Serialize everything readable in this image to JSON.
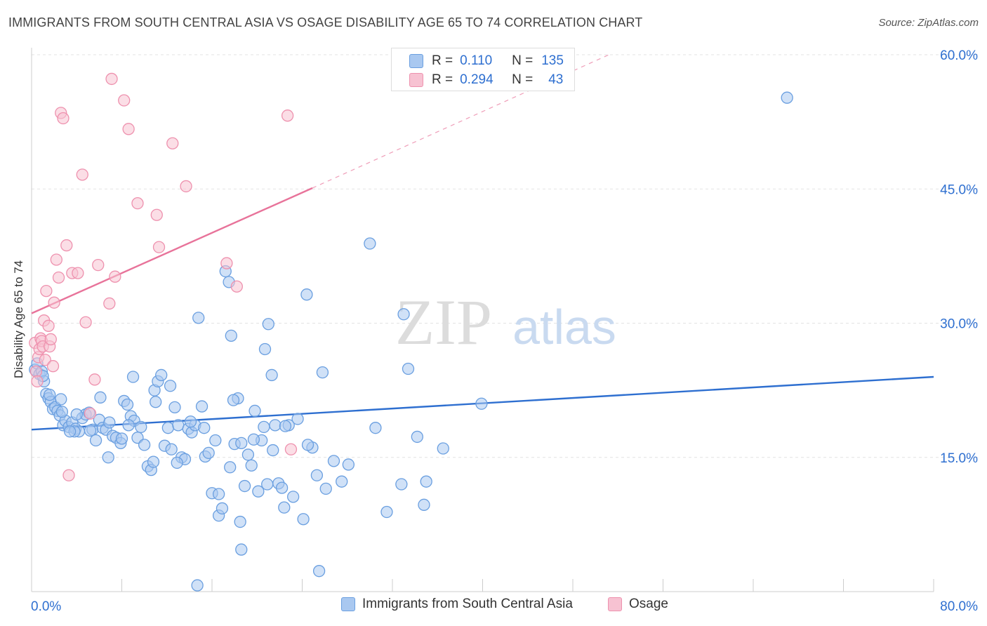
{
  "header": {
    "title": "IMMIGRANTS FROM SOUTH CENTRAL ASIA VS OSAGE DISABILITY AGE 65 TO 74 CORRELATION CHART",
    "source": "Source: ZipAtlas.com"
  },
  "watermark": {
    "zip": "ZIP",
    "atlas": "atlas"
  },
  "stats": {
    "rows": [
      {
        "r_label": "R =",
        "r_value": "0.110",
        "n_label": "N =",
        "n_value": "135",
        "color": "#a9c8f0",
        "border": "#6a9fe0"
      },
      {
        "r_label": "R =",
        "r_value": "0.294",
        "n_label": "N =",
        "n_value": "43",
        "color": "#f7c2d2",
        "border": "#ee91ae"
      }
    ]
  },
  "legend": {
    "items": [
      {
        "label": "Immigrants from South Central Asia",
        "color": "#a9c8f0",
        "border": "#6a9fe0"
      },
      {
        "label": "Osage",
        "color": "#f7c2d2",
        "border": "#ee91ae"
      }
    ]
  },
  "chart_data": {
    "type": "scatter",
    "title": "IMMIGRANTS FROM SOUTH CENTRAL ASIA VS OSAGE DISABILITY AGE 65 TO 74 CORRELATION CHART",
    "xlabel": "",
    "ylabel": "Disability Age 65 to 74",
    "xlim": [
      0,
      80
    ],
    "ylim": [
      0,
      60
    ],
    "x_tick_labels": {
      "min": "0.0%",
      "max": "80.0%"
    },
    "y_ticks": [
      {
        "value": 15,
        "label": "15.0%"
      },
      {
        "value": 30,
        "label": "30.0%"
      },
      {
        "value": 45,
        "label": "45.0%"
      },
      {
        "value": 60,
        "label": "60.0%"
      }
    ],
    "grid": true,
    "legend_position": "bottom",
    "series": [
      {
        "name": "Immigrants from South Central Asia",
        "color": "#6a9fe0",
        "fill": "#a9c8f0",
        "trend": {
          "x": [
            0,
            80
          ],
          "y": [
            18.1,
            24.0
          ],
          "style": "solid",
          "color": "#2e6fd0"
        },
        "points": [
          [
            0.3,
            24.8
          ],
          [
            0.5,
            25.5
          ],
          [
            0.7,
            24.3
          ],
          [
            0.9,
            24.6
          ],
          [
            1.1,
            23.5
          ],
          [
            1.3,
            22.1
          ],
          [
            1.5,
            21.6
          ],
          [
            1.7,
            21.2
          ],
          [
            1.9,
            20.4
          ],
          [
            2.1,
            20.6
          ],
          [
            2.3,
            20.2
          ],
          [
            2.5,
            19.7
          ],
          [
            2.8,
            18.6
          ],
          [
            3.0,
            19.1
          ],
          [
            3.3,
            18.4
          ],
          [
            3.6,
            18.9
          ],
          [
            3.9,
            18.2
          ],
          [
            4.2,
            17.9
          ],
          [
            4.5,
            19.4
          ],
          [
            4.8,
            19.8
          ],
          [
            5.1,
            20.0
          ],
          [
            5.4,
            18.1
          ],
          [
            5.7,
            16.9
          ],
          [
            6.0,
            19.2
          ],
          [
            6.3,
            18.3
          ],
          [
            6.6,
            18.1
          ],
          [
            6.9,
            18.9
          ],
          [
            7.2,
            17.4
          ],
          [
            7.5,
            17.2
          ],
          [
            7.9,
            16.6
          ],
          [
            8.2,
            21.3
          ],
          [
            8.5,
            20.9
          ],
          [
            8.8,
            19.6
          ],
          [
            9.1,
            19.1
          ],
          [
            9.4,
            17.2
          ],
          [
            9.7,
            18.4
          ],
          [
            10.0,
            16.4
          ],
          [
            10.3,
            14.0
          ],
          [
            10.6,
            13.6
          ],
          [
            10.9,
            22.5
          ],
          [
            11.2,
            23.5
          ],
          [
            11.5,
            24.2
          ],
          [
            11.8,
            16.3
          ],
          [
            12.1,
            18.3
          ],
          [
            12.4,
            15.9
          ],
          [
            12.7,
            20.6
          ],
          [
            13.0,
            18.6
          ],
          [
            13.3,
            15.0
          ],
          [
            13.6,
            14.8
          ],
          [
            13.9,
            18.2
          ],
          [
            14.2,
            17.8
          ],
          [
            14.5,
            18.6
          ],
          [
            14.8,
            30.6
          ],
          [
            15.1,
            20.7
          ],
          [
            15.4,
            15.1
          ],
          [
            15.7,
            15.5
          ],
          [
            16.0,
            11.0
          ],
          [
            16.3,
            16.9
          ],
          [
            16.6,
            8.5
          ],
          [
            16.9,
            9.3
          ],
          [
            17.2,
            35.8
          ],
          [
            17.5,
            34.6
          ],
          [
            17.7,
            28.6
          ],
          [
            18.0,
            16.5
          ],
          [
            18.3,
            21.6
          ],
          [
            18.6,
            16.6
          ],
          [
            18.9,
            11.8
          ],
          [
            19.2,
            15.3
          ],
          [
            19.5,
            14.1
          ],
          [
            19.8,
            20.2
          ],
          [
            20.1,
            11.2
          ],
          [
            20.4,
            16.9
          ],
          [
            20.7,
            27.1
          ],
          [
            21.0,
            29.9
          ],
          [
            21.3,
            24.2
          ],
          [
            21.6,
            18.6
          ],
          [
            21.9,
            12.1
          ],
          [
            22.2,
            11.6
          ],
          [
            22.8,
            18.6
          ],
          [
            23.2,
            10.6
          ],
          [
            23.6,
            19.3
          ],
          [
            24.1,
            8.1
          ],
          [
            24.4,
            33.2
          ],
          [
            24.9,
            16.1
          ],
          [
            25.3,
            13.0
          ],
          [
            25.8,
            24.5
          ],
          [
            26.8,
            14.6
          ],
          [
            28.1,
            14.2
          ],
          [
            30.0,
            38.9
          ],
          [
            30.5,
            18.3
          ],
          [
            31.5,
            8.9
          ],
          [
            32.8,
            12.0
          ],
          [
            33.0,
            31.0
          ],
          [
            33.4,
            24.9
          ],
          [
            34.2,
            17.3
          ],
          [
            34.8,
            9.7
          ],
          [
            35.0,
            12.3
          ],
          [
            36.5,
            16.0
          ],
          [
            39.9,
            21.0
          ],
          [
            67.0,
            55.2
          ],
          [
            1.0,
            24.1
          ],
          [
            1.6,
            22.0
          ],
          [
            2.6,
            21.5
          ],
          [
            3.8,
            17.9
          ],
          [
            5.2,
            18.0
          ],
          [
            6.8,
            15.0
          ],
          [
            8.0,
            17.1
          ],
          [
            9.0,
            24.0
          ],
          [
            10.8,
            14.5
          ],
          [
            12.3,
            23.0
          ],
          [
            14.1,
            19.0
          ],
          [
            15.3,
            18.3
          ],
          [
            16.6,
            10.9
          ],
          [
            17.9,
            21.4
          ],
          [
            18.6,
            4.7
          ],
          [
            19.7,
            17.0
          ],
          [
            20.9,
            12.0
          ],
          [
            22.5,
            18.5
          ],
          [
            24.5,
            16.4
          ],
          [
            26.1,
            11.5
          ],
          [
            18.5,
            7.8
          ],
          [
            20.6,
            18.4
          ],
          [
            17.6,
            13.9
          ],
          [
            12.9,
            14.4
          ],
          [
            22.4,
            9.4
          ],
          [
            21.4,
            15.8
          ],
          [
            27.5,
            12.3
          ],
          [
            11.0,
            21.2
          ],
          [
            8.6,
            18.6
          ],
          [
            6.1,
            21.7
          ],
          [
            3.4,
            17.9
          ],
          [
            2.7,
            20.1
          ],
          [
            4.0,
            19.8
          ],
          [
            14.7,
            0.7
          ],
          [
            25.5,
            2.3
          ]
        ]
      },
      {
        "name": "Osage",
        "color": "#ee91ae",
        "fill": "#f7c2d2",
        "trend": {
          "x": [
            0,
            24.9
          ],
          "y": [
            31.1,
            45.1
          ],
          "style": "solid",
          "color": "#e8739a",
          "extension": {
            "x": [
              24.9,
              51.2
            ],
            "y": [
              45.1,
              60.0
            ],
            "style": "dashed"
          }
        },
        "points": [
          [
            0.3,
            27.8
          ],
          [
            0.4,
            24.6
          ],
          [
            0.5,
            23.5
          ],
          [
            0.6,
            26.2
          ],
          [
            0.7,
            27.1
          ],
          [
            0.8,
            28.3
          ],
          [
            0.9,
            28.0
          ],
          [
            1.0,
            27.4
          ],
          [
            1.1,
            30.3
          ],
          [
            1.2,
            25.9
          ],
          [
            1.3,
            33.6
          ],
          [
            1.5,
            29.7
          ],
          [
            1.6,
            27.4
          ],
          [
            1.7,
            28.2
          ],
          [
            1.9,
            25.2
          ],
          [
            2.0,
            32.3
          ],
          [
            2.2,
            37.1
          ],
          [
            2.4,
            35.1
          ],
          [
            2.6,
            53.5
          ],
          [
            2.8,
            52.9
          ],
          [
            3.1,
            38.7
          ],
          [
            3.3,
            13.0
          ],
          [
            3.6,
            35.6
          ],
          [
            4.1,
            35.6
          ],
          [
            4.5,
            46.6
          ],
          [
            4.8,
            30.1
          ],
          [
            5.2,
            19.9
          ],
          [
            5.6,
            23.7
          ],
          [
            5.9,
            36.5
          ],
          [
            6.9,
            32.2
          ],
          [
            7.1,
            57.3
          ],
          [
            7.4,
            35.2
          ],
          [
            8.2,
            54.9
          ],
          [
            8.6,
            51.7
          ],
          [
            9.4,
            43.4
          ],
          [
            11.1,
            42.1
          ],
          [
            11.3,
            38.5
          ],
          [
            12.5,
            50.1
          ],
          [
            13.7,
            45.3
          ],
          [
            17.3,
            36.7
          ],
          [
            18.2,
            34.1
          ],
          [
            22.7,
            53.2
          ],
          [
            23.0,
            15.9
          ]
        ]
      }
    ]
  }
}
